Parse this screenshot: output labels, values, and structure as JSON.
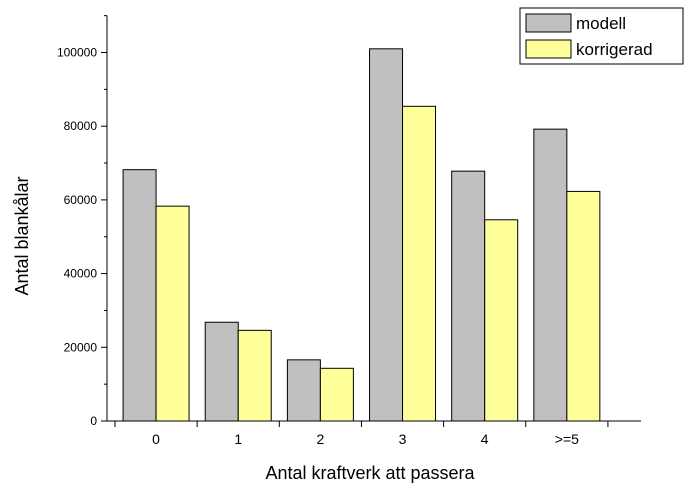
{
  "chart_data": {
    "type": "bar",
    "title": "",
    "xlabel": "Antal kraftverk att passera",
    "ylabel": "Antal blankålar",
    "categories": [
      "0",
      "1",
      "2",
      "3",
      "4",
      ">=5"
    ],
    "series": [
      {
        "name": "modell",
        "values": [
          68200,
          26800,
          16600,
          101000,
          67800,
          79200
        ],
        "color": "#c0c0c0"
      },
      {
        "name": "korrigerad",
        "values": [
          58300,
          24600,
          14300,
          85400,
          54600,
          62300
        ],
        "color": "#ffff99"
      }
    ],
    "ylim": [
      0,
      110000
    ],
    "y_ticks": [
      "0",
      "20000",
      "40000",
      "60000",
      "80000",
      "100000"
    ],
    "legend_position": "top-right",
    "grid": false
  }
}
